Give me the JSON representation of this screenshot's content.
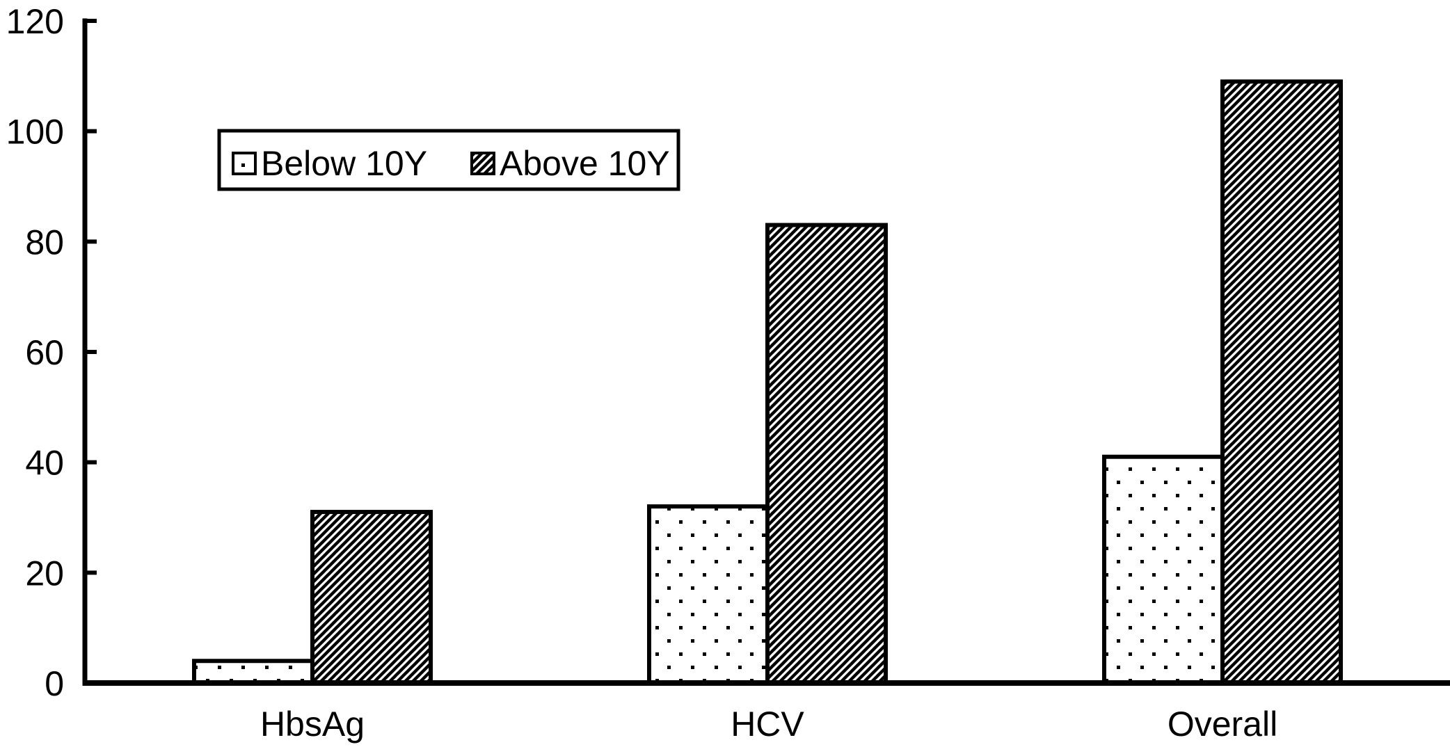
{
  "chart_data": {
    "type": "bar",
    "title": "",
    "xlabel": "",
    "ylabel": "",
    "categories": [
      "HbsAg",
      "HCV",
      "Overall"
    ],
    "series": [
      {
        "name": "Below 10Y",
        "pattern": "dots",
        "values": [
          4,
          32,
          41
        ]
      },
      {
        "name": "Above 10Y",
        "pattern": "diagonal-hatch",
        "values": [
          31,
          83,
          109
        ]
      }
    ],
    "ylim": [
      0,
      120
    ],
    "yticks": [
      0,
      20,
      40,
      60,
      80,
      100,
      120
    ],
    "grid": false,
    "legend": {
      "position": "upper-left-inside",
      "border": true
    },
    "colors": {
      "foreground": "#000000",
      "background": "#ffffff",
      "bar_fill_base": "#ffffff",
      "bar_stroke": "#000000"
    }
  }
}
